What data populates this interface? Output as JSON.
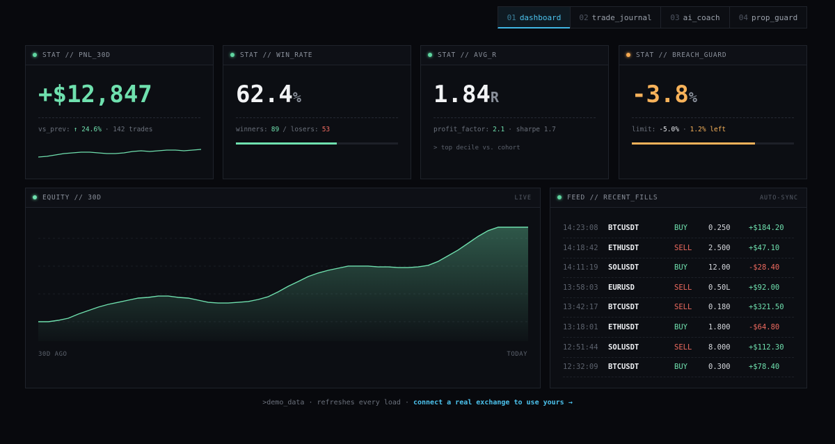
{
  "nav": {
    "active": 0,
    "tabs": [
      {
        "num": "01",
        "label": "dashboard"
      },
      {
        "num": "02",
        "label": "trade_journal"
      },
      {
        "num": "03",
        "label": "ai_coach"
      },
      {
        "num": "04",
        "label": "prop_guard"
      }
    ]
  },
  "cards": [
    {
      "label": "STAT // PNL_30D",
      "dot": "#5fd6a0",
      "value": "+$12,847",
      "value_color": "#6fe0ae",
      "sub": [
        {
          "text": "vs_prev:",
          "tone": "dim"
        },
        {
          "text": "↑ 24.6%",
          "tone": "green"
        },
        {
          "text": "· 142 trades",
          "tone": "dim"
        }
      ],
      "spark": {
        "values": [
          10,
          15,
          25,
          35,
          40,
          45,
          45,
          40,
          35,
          35,
          40,
          50,
          55,
          50,
          55,
          60,
          60,
          55,
          60,
          65
        ],
        "ylim": [
          0,
          100
        ],
        "color": "#6fe0ae"
      }
    },
    {
      "label": "STAT // WIN_RATE",
      "dot": "#5fd6a0",
      "value": "62.4",
      "unit": "%",
      "value_color": "#f2f3f5",
      "sub": [
        {
          "text": "winners:",
          "tone": "dim"
        },
        {
          "text": "89",
          "tone": "green"
        },
        {
          "text": "/ losers:",
          "tone": "dim"
        },
        {
          "text": "53",
          "tone": "red"
        }
      ],
      "bar": {
        "value": 62.4,
        "max": 100,
        "color": "#6fe0ae"
      }
    },
    {
      "label": "STAT // AVG_R",
      "dot": "#5fd6a0",
      "value": "1.84",
      "unit": "R",
      "value_color": "#f2f3f5",
      "sub": [
        {
          "text": "profit_factor:",
          "tone": "dim"
        },
        {
          "text": "2.1",
          "tone": "green"
        },
        {
          "text": "· sharpe 1.7",
          "tone": "dim"
        }
      ],
      "note": "> top decile vs. cohort"
    },
    {
      "label": "STAT // BREACH_GUARD",
      "dot": "#f5a850",
      "value": "-3.8",
      "unit": "%",
      "value_color": "#f7b25a",
      "sub": [
        {
          "text": "limit:",
          "tone": "dim"
        },
        {
          "text": "-5.0%",
          "tone": "bright"
        },
        {
          "text": "·",
          "tone": "dim"
        },
        {
          "text": "1.2% left",
          "tone": "orange"
        }
      ],
      "bar": {
        "value": 3.8,
        "max": 5.0,
        "color": "#f7b25a"
      }
    }
  ],
  "equity": {
    "label": "EQUITY // 30D",
    "badge": "LIVE",
    "x_start": "30D AGO",
    "x_end": "TODAY",
    "color": "#6fe0ae",
    "ylim": [
      0,
      100
    ],
    "values": [
      17.1,
      17.1,
      18.3,
      20.1,
      23.8,
      26.8,
      29.9,
      32.3,
      34.1,
      36,
      37.8,
      38.4,
      39.6,
      39.6,
      38.4,
      37.8,
      36,
      34.1,
      33.5,
      33.5,
      34.1,
      34.8,
      36.6,
      39,
      43.3,
      48.2,
      52.4,
      56.7,
      59.8,
      62.2,
      64,
      65.9,
      65.9,
      65.9,
      65.2,
      65.2,
      64.6,
      64.6,
      65.2,
      66.5,
      70,
      75,
      80,
      86,
      92,
      97,
      100,
      100,
      100,
      100
    ]
  },
  "feed": {
    "label": "FEED // RECENT_FILLS",
    "badge": "AUTO-SYNC",
    "rows": [
      [
        "14:23:08",
        "BTCUSDT",
        "BUY",
        "0.250",
        "+$184.20"
      ],
      [
        "14:18:42",
        "ETHUSDT",
        "SELL",
        "2.500",
        "+$47.10"
      ],
      [
        "14:11:19",
        "SOLUSDT",
        "BUY",
        "12.00",
        "-$28.40"
      ],
      [
        "13:58:03",
        "EURUSD",
        "SELL",
        "0.50L",
        "+$92.00"
      ],
      [
        "13:42:17",
        "BTCUSDT",
        "SELL",
        "0.180",
        "+$321.50"
      ],
      [
        "13:18:01",
        "ETHUSDT",
        "BUY",
        "1.800",
        "-$64.80"
      ],
      [
        "12:51:44",
        "SOLUSDT",
        "SELL",
        "8.000",
        "+$112.30"
      ],
      [
        "12:32:09",
        "BTCUSDT",
        "BUY",
        "0.300",
        "+$78.40"
      ]
    ]
  },
  "footer": {
    "text": ">demo_data · refreshes every load ·",
    "link": "connect a real exchange to use yours →"
  }
}
